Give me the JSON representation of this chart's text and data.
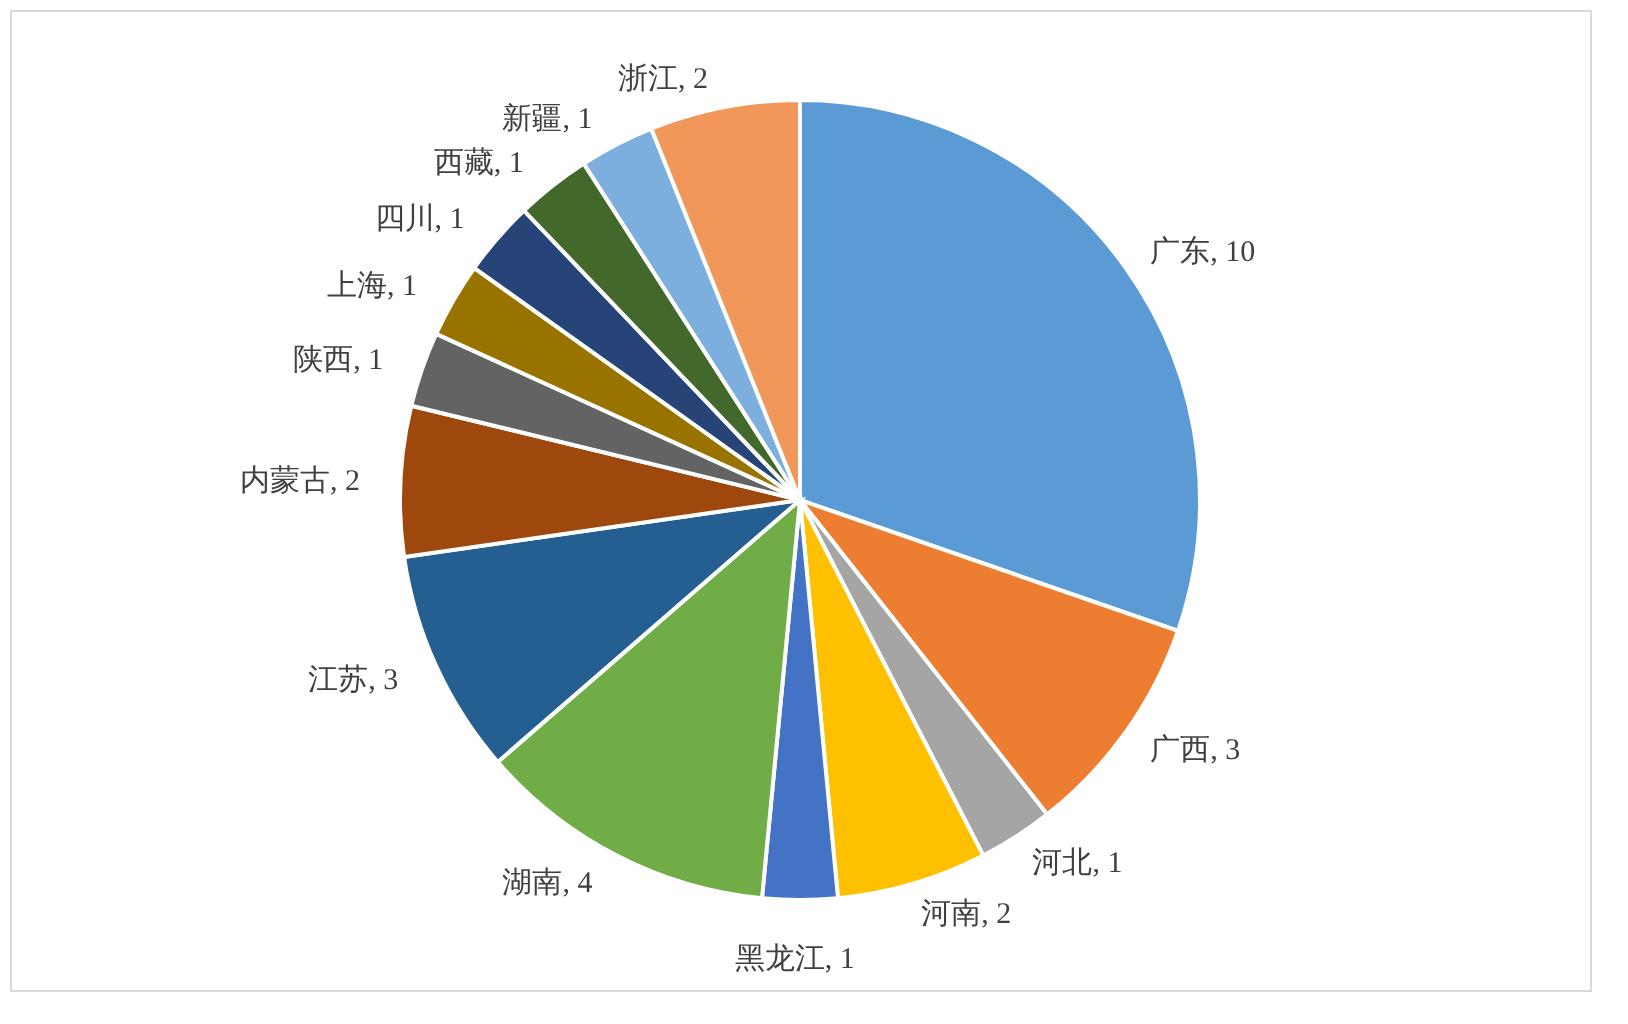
{
  "chart_data": {
    "type": "pie",
    "legend": false,
    "categories": [
      "广东",
      "广西",
      "河北",
      "河南",
      "黑龙江",
      "湖南",
      "江苏",
      "内蒙古",
      "陕西",
      "上海",
      "四川",
      "西藏",
      "新疆",
      "浙江"
    ],
    "values": [
      10,
      3,
      1,
      2,
      1,
      4,
      3,
      2,
      1,
      1,
      1,
      1,
      1,
      2
    ],
    "value_labels": [
      ", 10",
      ", 3",
      ", 1",
      ", 2",
      ", 1",
      ", 4",
      ", 3",
      ", 2",
      ", 1",
      ", 1",
      ", 1",
      ", 1",
      ", 1",
      ", 2"
    ],
    "colors": [
      "#5b9bd5",
      "#ed7d31",
      "#a5a5a5",
      "#ffc000",
      "#4472c4",
      "#70ad47",
      "#255e91",
      "#9e480e",
      "#636363",
      "#997300",
      "#264478",
      "#43682b",
      "#7cafdd",
      "#f1975a"
    ]
  }
}
